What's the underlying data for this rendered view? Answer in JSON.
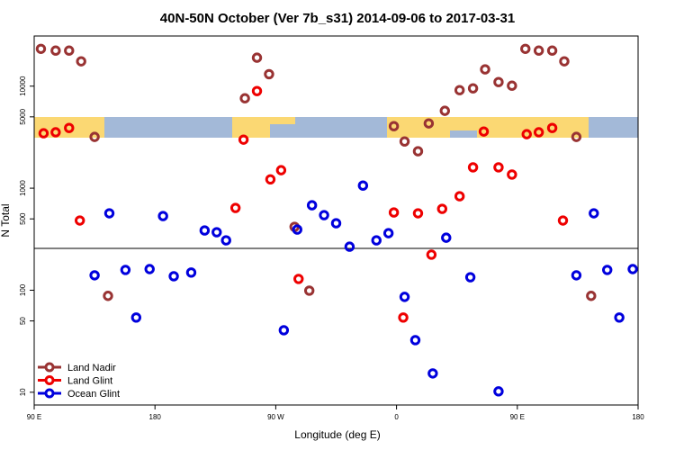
{
  "chart_data": {
    "type": "scatter",
    "title": "40N-50N October (Ver 7b_s31)   2014-09-06 to 2017-03-31",
    "x_label": "Longitude (deg E)",
    "y_label": "N Total",
    "y_log": true,
    "xlim": [
      -270,
      180
    ],
    "ylim": [
      7.5,
      31000
    ],
    "xticks": [
      {
        "value": -270,
        "label": "90 E"
      },
      {
        "value": -180,
        "label": "180"
      },
      {
        "value": -90,
        "label": "90 W"
      },
      0,
      {
        "value": 90,
        "label": "90 E"
      },
      180
    ],
    "yticks": [
      10,
      50,
      100,
      500,
      1000,
      5000,
      10000
    ],
    "legend": "bottom-left",
    "series": [
      {
        "name": "Land Nadir",
        "color": "#993333",
        "x": [
          -265,
          -254,
          -244,
          -235,
          -225,
          -215,
          -113,
          -104,
          -95,
          -76,
          -65,
          -2,
          6,
          16,
          24,
          36,
          47,
          57,
          66,
          76,
          86,
          96,
          106,
          116,
          125,
          134,
          145
        ],
        "values": [
          23200,
          22300,
          22300,
          17500,
          3180,
          88,
          7600,
          19000,
          13100,
          418,
          99,
          4050,
          2870,
          2300,
          4310,
          5730,
          9130,
          9510,
          14600,
          10960,
          10100,
          23200,
          22300,
          22300,
          17500,
          3180,
          88
        ]
      },
      {
        "name": "Land Glint",
        "color": "#ee0000",
        "x": [
          -263,
          -254,
          -244,
          -236,
          -120,
          -114,
          -104,
          -94,
          -86,
          -73,
          -2,
          5,
          16,
          26,
          34,
          47,
          57,
          65,
          76,
          86,
          97,
          106,
          116,
          124
        ],
        "values": [
          3450,
          3530,
          3890,
          482,
          640,
          2990,
          8950,
          1220,
          1500,
          129,
          578,
          54,
          567,
          223,
          627,
          833,
          1600,
          3590,
          1600,
          1360,
          3380,
          3530,
          3890,
          482
        ]
      },
      {
        "name": "Ocean Glint",
        "color": "#0000dd",
        "x": [
          -225,
          -214,
          -202,
          -194,
          -184,
          -174,
          -166,
          -153,
          -143,
          -134,
          -127,
          -84,
          -74,
          -63,
          -54,
          -45,
          -35,
          -25,
          -15,
          -6,
          6,
          14,
          27,
          37,
          55,
          76,
          134,
          147,
          157,
          166,
          176
        ],
        "values": [
          140,
          567,
          158,
          54,
          161,
          533,
          137,
          149,
          385,
          370,
          308,
          40.5,
          393,
          680,
          544,
          453,
          267,
          1060,
          308,
          362,
          86,
          32.4,
          15.3,
          327,
          134,
          10.2,
          140,
          567,
          158,
          54,
          161
        ]
      }
    ]
  }
}
